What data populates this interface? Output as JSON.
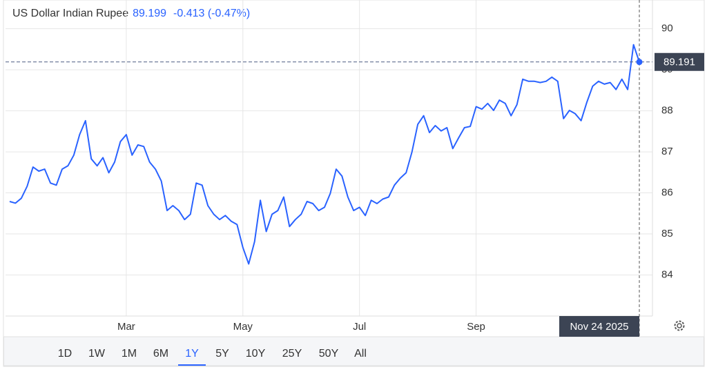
{
  "header": {
    "title": "US Dollar Indian Rupee",
    "price": 89.199,
    "change": "-0.413 (-0.47%)"
  },
  "chart_data": {
    "type": "line",
    "color": "#2962ff",
    "categories": [
      null,
      null,
      null,
      null,
      null,
      null,
      null,
      null,
      null,
      null,
      null,
      null,
      null,
      null,
      null,
      null,
      null,
      null,
      null,
      null,
      "Mar",
      null,
      null,
      null,
      null,
      null,
      null,
      null,
      null,
      null,
      null,
      null,
      null,
      null,
      null,
      null,
      null,
      null,
      null,
      null,
      "May",
      null,
      null,
      null,
      null,
      null,
      null,
      null,
      null,
      null,
      null,
      null,
      null,
      null,
      null,
      null,
      null,
      null,
      null,
      null,
      "Jul",
      null,
      null,
      null,
      null,
      null,
      null,
      null,
      null,
      null,
      null,
      null,
      null,
      null,
      null,
      null,
      null,
      null,
      null,
      null,
      "Sep",
      null,
      null,
      null,
      null,
      null,
      null,
      null,
      null,
      null,
      null,
      null,
      null,
      null,
      null,
      null,
      null,
      null,
      null,
      null,
      null,
      null,
      null,
      null,
      null,
      null,
      null,
      null,
      null
    ],
    "values": [
      85.79,
      85.75,
      85.87,
      86.16,
      86.63,
      86.53,
      86.58,
      86.24,
      86.19,
      86.58,
      86.66,
      86.92,
      87.42,
      87.76,
      86.83,
      86.66,
      86.86,
      86.49,
      86.75,
      87.25,
      87.42,
      86.92,
      87.17,
      87.13,
      86.75,
      86.58,
      86.29,
      85.57,
      85.69,
      85.57,
      85.35,
      85.48,
      86.24,
      86.19,
      85.69,
      85.48,
      85.35,
      85.45,
      85.31,
      85.23,
      84.67,
      84.27,
      84.81,
      85.82,
      85.06,
      85.48,
      85.57,
      85.9,
      85.18,
      85.35,
      85.48,
      85.79,
      85.74,
      85.57,
      85.65,
      85.99,
      86.58,
      86.41,
      85.9,
      85.57,
      85.65,
      85.45,
      85.82,
      85.74,
      85.85,
      85.9,
      86.19,
      86.36,
      86.49,
      87.0,
      87.67,
      87.88,
      87.47,
      87.64,
      87.51,
      87.59,
      87.08,
      87.34,
      87.59,
      87.62,
      88.1,
      88.04,
      88.18,
      88.01,
      88.26,
      88.18,
      87.88,
      88.15,
      88.77,
      88.72,
      88.72,
      88.69,
      88.72,
      88.82,
      88.72,
      87.81,
      88.01,
      87.93,
      87.76,
      88.21,
      88.6,
      88.72,
      88.65,
      88.69,
      88.52,
      88.77,
      88.52,
      89.61,
      89.19
    ],
    "ylim": [
      83,
      90.7
    ],
    "yticks": [
      84,
      85,
      86,
      87,
      88,
      89,
      90
    ],
    "grid": true,
    "last_value": 89.191,
    "crosshair_date": "Nov 24 2025"
  },
  "ranges": [
    "1D",
    "1W",
    "1M",
    "6M",
    "1Y",
    "5Y",
    "10Y",
    "25Y",
    "50Y",
    "All"
  ],
  "selected_range": "1Y"
}
